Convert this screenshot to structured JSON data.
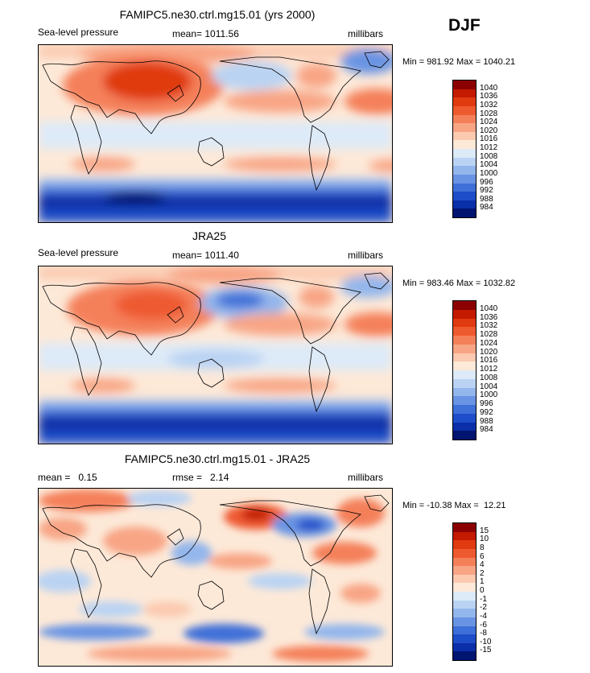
{
  "season": "DJF",
  "chart_data": [
    {
      "type": "heatmap",
      "title": "FAMIPC5.ne30.ctrl.mg15.01 (yrs 2000)",
      "field": "Sea-level pressure",
      "mean_label": "mean=",
      "mean": "1011.56",
      "units": "millibars",
      "min_label": "Min =",
      "min": "981.92",
      "max_label": "Max =",
      "max": "1040.21",
      "colorbar_levels": [
        "1040",
        "1036",
        "1032",
        "1028",
        "1024",
        "1020",
        "1016",
        "1012",
        "1008",
        "1004",
        "1000",
        "996",
        "992",
        "988",
        "984"
      ],
      "colors": [
        "#8b0000",
        "#c31a00",
        "#e03a10",
        "#ee5a30",
        "#f4805a",
        "#f8a585",
        "#fbcab0",
        "#fde9d8",
        "#ddeaf8",
        "#bad3f3",
        "#93b6ec",
        "#6994e3",
        "#3f6fd8",
        "#1d4dc8",
        "#0a2fa8",
        "#001470"
      ]
    },
    {
      "type": "heatmap",
      "title": "JRA25",
      "field": "Sea-level pressure",
      "mean_label": "mean=",
      "mean": "1011.40",
      "units": "millibars",
      "min_label": "Min =",
      "min": "983.46",
      "max_label": "Max =",
      "max": "1032.82",
      "colorbar_levels": [
        "1040",
        "1036",
        "1032",
        "1028",
        "1024",
        "1020",
        "1016",
        "1012",
        "1008",
        "1004",
        "1000",
        "996",
        "992",
        "988",
        "984"
      ],
      "colors": [
        "#8b0000",
        "#c31a00",
        "#e03a10",
        "#ee5a30",
        "#f4805a",
        "#f8a585",
        "#fbcab0",
        "#fde9d8",
        "#ddeaf8",
        "#bad3f3",
        "#93b6ec",
        "#6994e3",
        "#3f6fd8",
        "#1d4dc8",
        "#0a2fa8",
        "#001470"
      ]
    },
    {
      "type": "heatmap",
      "title": "FAMIPC5.ne30.ctrl.mg15.01 - JRA25",
      "mean_label": "mean =",
      "mean": "0.15",
      "rmse_label": "rmse =",
      "rmse": "2.14",
      "units": "millibars",
      "min_label": "Min =",
      "min": "-10.38",
      "max_label": "Max =",
      "max": "12.21",
      "colorbar_levels": [
        "15",
        "10",
        "8",
        "6",
        "4",
        "2",
        "1",
        "0",
        "-1",
        "-2",
        "-4",
        "-6",
        "-8",
        "-10",
        "-15"
      ],
      "colors": [
        "#8b0000",
        "#c31a00",
        "#e03a10",
        "#ee5a30",
        "#f4805a",
        "#f8a585",
        "#fbcab0",
        "#fde9d8",
        "#ddeaf8",
        "#bad3f3",
        "#93b6ec",
        "#6994e3",
        "#3f6fd8",
        "#1d4dc8",
        "#0a2fa8",
        "#001470"
      ]
    }
  ]
}
